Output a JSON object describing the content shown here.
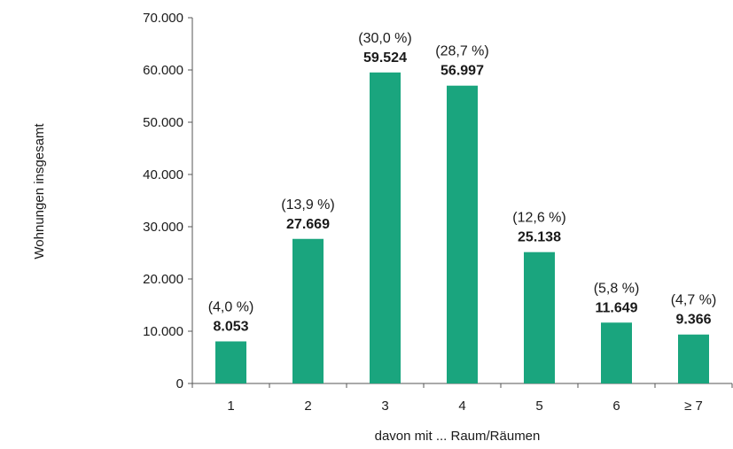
{
  "chart_data": {
    "type": "bar",
    "categories": [
      "1",
      "2",
      "3",
      "4",
      "5",
      "6",
      "≥ 7"
    ],
    "values": [
      8053,
      27669,
      59524,
      56997,
      25138,
      11649,
      9366
    ],
    "value_labels": [
      "8.053",
      "27.669",
      "59.524",
      "56.997",
      "25.138",
      "11.649",
      "9.366"
    ],
    "percent_labels": [
      "(4,0 %)",
      "(13,9 %)",
      "(30,0 %)",
      "(28,7 %)",
      "(12,6 %)",
      "(5,8 %)",
      "(4,7 %)"
    ],
    "yticks": [
      0,
      10000,
      20000,
      30000,
      40000,
      50000,
      60000,
      70000
    ],
    "ytick_labels": [
      "0",
      "10.000",
      "20.000",
      "30.000",
      "40.000",
      "50.000",
      "60.000",
      "70.000"
    ],
    "ylim": [
      0,
      70000
    ],
    "xlabel": "davon mit ... Raum/Räumen",
    "ylabel": "Wohnungen insgesamt",
    "grid": false,
    "bar_color": "#1aa57e"
  }
}
